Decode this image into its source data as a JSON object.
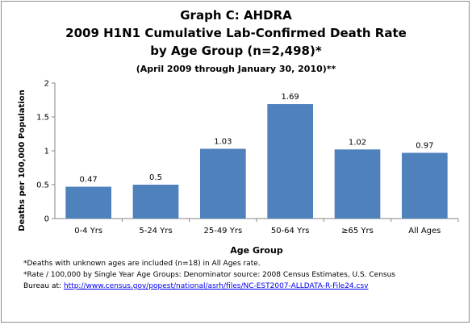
{
  "chart_data": {
    "type": "bar",
    "title": "Graph C: AHDRA",
    "title_line2": "2009 H1N1 Cumulative Lab-Confirmed Death Rate",
    "title_line3": "by Age Group (n=2,498)*",
    "subtitle": "(April 2009 through January 30, 2010)**",
    "categories": [
      "0-4 Yrs",
      "5-24 Yrs",
      "25-49 Yrs",
      "50-64 Yrs",
      "≥65 Yrs",
      "All Ages"
    ],
    "values": [
      0.47,
      0.5,
      1.03,
      1.69,
      1.02,
      0.97
    ],
    "data_labels": [
      "0.47",
      "0.5",
      "1.03",
      "1.69",
      "1.02",
      "0.97"
    ],
    "xlabel": "Age Group",
    "ylabel": "Deaths per 100,000 Population",
    "ylim": [
      0,
      2
    ],
    "yticks": [
      "0",
      "0.5",
      "1",
      "1.5",
      "2"
    ],
    "grid": false,
    "legend": "none",
    "bar_color": "#4f81bd"
  },
  "footnotes": {
    "line1": "*Deaths with unknown ages are included (n=18) in All Ages rate.",
    "line2": "*Rate / 100,000 by Single Year Age Groups: Denominator  source: 2008 Census Estimates,  U.S. Census",
    "line3_prefix": "Bureau at:  ",
    "line3_url": "http://www.census.gov/popest/national/asrh/files/NC-EST2007-ALLDATA-R-File24.csv"
  }
}
